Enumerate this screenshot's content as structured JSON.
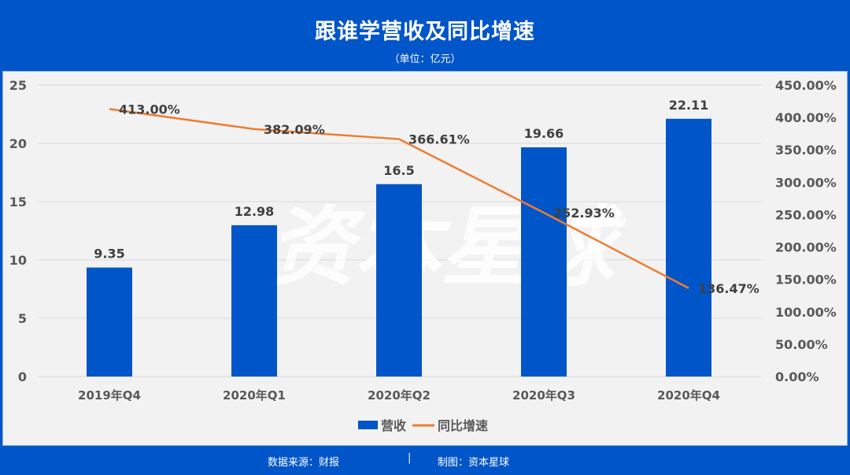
{
  "header": {
    "title": "跟谁学营收及同比增速",
    "subtitle": "（单位：亿元）"
  },
  "footer": {
    "source": "数据来源：财报",
    "separator": "|",
    "maker": "制图：资本星球"
  },
  "watermark": "资本星球",
  "colors": {
    "bar": "#0055c8",
    "line": "#ed7d31",
    "background": "#f2f2f2",
    "frame": "#0055c8"
  },
  "chart_data": {
    "type": "bar+line",
    "title": "跟谁学营收及同比增速",
    "subtitle": "（单位：亿元）",
    "categories": [
      "2019年Q4",
      "2020年Q1",
      "2020年Q2",
      "2020年Q3",
      "2020年Q4"
    ],
    "series": [
      {
        "name": "营收",
        "type": "bar",
        "axis": "left",
        "values": [
          9.35,
          12.98,
          16.5,
          19.66,
          22.11
        ],
        "labels": [
          "9.35",
          "12.98",
          "16.5",
          "19.66",
          "22.11"
        ]
      },
      {
        "name": "同比增速",
        "type": "line",
        "axis": "right",
        "values": [
          413.0,
          382.09,
          366.61,
          252.93,
          136.47
        ],
        "labels": [
          "413.00%",
          "382.09%",
          "366.61%",
          "252.93%",
          "136.47%"
        ]
      }
    ],
    "left_axis": {
      "ylim": [
        0,
        25
      ],
      "ticks": [
        "0",
        "5",
        "10",
        "15",
        "20",
        "25"
      ]
    },
    "right_axis": {
      "ylim": [
        0,
        450
      ],
      "ticks": [
        "0.00%",
        "50.00%",
        "100.00%",
        "150.00%",
        "200.00%",
        "250.00%",
        "300.00%",
        "350.00%",
        "400.00%",
        "450.00%"
      ]
    },
    "grid": true,
    "legend": {
      "position": "bottom",
      "entries": [
        "营收",
        "同比增速"
      ]
    }
  }
}
